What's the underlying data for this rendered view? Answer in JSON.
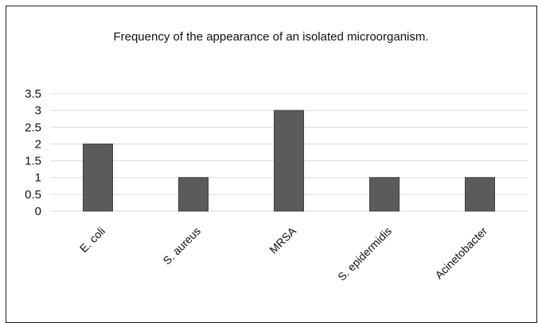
{
  "chart_data": {
    "type": "bar",
    "title": "Frequency of the appearance of an isolated microorganism.",
    "categories": [
      "E. coli",
      "S. aureus",
      "MRSA",
      "S. epidermidis",
      "Acinetobacter"
    ],
    "values": [
      2,
      1,
      3,
      1,
      1
    ],
    "ylim": [
      0,
      3.5
    ],
    "yticks": [
      "0",
      "0.5",
      "1",
      "1.5",
      "2",
      "2.5",
      "3",
      "3.5"
    ],
    "grid": true,
    "legend": "none",
    "colors": {
      "bar": "#5b5b5b",
      "bar_edge": "#3f3f3f",
      "grid": "#d9d9d9",
      "text": "#111111"
    }
  }
}
